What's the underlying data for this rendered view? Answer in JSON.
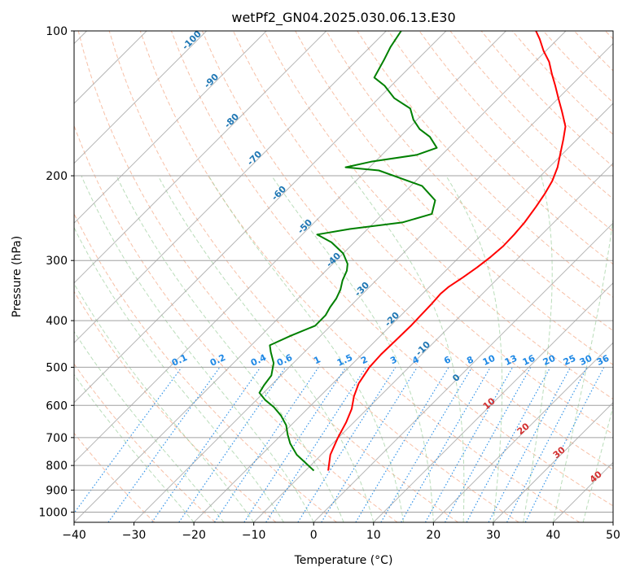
{
  "chart_data": {
    "type": "line",
    "title": "wetPf2_GN04.2025.030.06.13.E30",
    "xlabel": "Temperature (°C)",
    "ylabel": "Pressure (hPa)",
    "x_scale": "skewT",
    "y_scale": "log",
    "xlim": [
      -40,
      50
    ],
    "ylim": [
      1050,
      100
    ],
    "x_ticks": [
      "−40",
      "−30",
      "−20",
      "−10",
      "0",
      "10",
      "20",
      "30",
      "40",
      "50"
    ],
    "y_ticks": [
      "100",
      "200",
      "300",
      "400",
      "500",
      "600",
      "700",
      "800",
      "900",
      "1000"
    ],
    "grid": true,
    "series": [
      {
        "color": "#ff0000",
        "points": [
          [
            -6.2,
            820
          ],
          [
            -8.5,
            760
          ],
          [
            -10.1,
            700
          ],
          [
            -11.3,
            650
          ],
          [
            -12.6,
            610
          ],
          [
            -14.3,
            575
          ],
          [
            -15.7,
            540
          ],
          [
            -16.6,
            500
          ],
          [
            -16.8,
            470
          ],
          [
            -16.7,
            440
          ],
          [
            -16.6,
            410
          ],
          [
            -16.7,
            390
          ],
          [
            -16.8,
            370
          ],
          [
            -17.0,
            352
          ],
          [
            -16.8,
            340
          ],
          [
            -16.0,
            325
          ],
          [
            -15.3,
            310
          ],
          [
            -14.8,
            295
          ],
          [
            -14.5,
            280
          ],
          [
            -14.6,
            265
          ],
          [
            -14.9,
            250
          ],
          [
            -15.6,
            232
          ],
          [
            -16.3,
            218
          ],
          [
            -17.2,
            205
          ],
          [
            -18.6,
            192
          ],
          [
            -20.4,
            180
          ],
          [
            -22.3,
            168
          ],
          [
            -24.1,
            158
          ],
          [
            -27.2,
            147
          ],
          [
            -30.0,
            138
          ],
          [
            -32.6,
            130
          ],
          [
            -35.1,
            123
          ],
          [
            -37.6,
            116
          ],
          [
            -40.4,
            110
          ],
          [
            -43.0,
            104
          ],
          [
            -45.0,
            100
          ]
        ]
      },
      {
        "color": "#008000",
        "points": [
          [
            -8.6,
            820
          ],
          [
            -11.3,
            790
          ],
          [
            -14.1,
            760
          ],
          [
            -17.1,
            720
          ],
          [
            -19.0,
            690
          ],
          [
            -20.8,
            660
          ],
          [
            -23.3,
            630
          ],
          [
            -25.9,
            605
          ],
          [
            -28.5,
            585
          ],
          [
            -30.7,
            565
          ],
          [
            -31.2,
            545
          ],
          [
            -31.6,
            520
          ],
          [
            -33.3,
            490
          ],
          [
            -35.6,
            465
          ],
          [
            -36.9,
            450
          ],
          [
            -35.0,
            430
          ],
          [
            -32.6,
            410
          ],
          [
            -32.6,
            390
          ],
          [
            -33.2,
            375
          ],
          [
            -33.6,
            360
          ],
          [
            -34.4,
            345
          ],
          [
            -35.6,
            330
          ],
          [
            -36.5,
            315
          ],
          [
            -37.5,
            305
          ],
          [
            -40.0,
            290
          ],
          [
            -43.8,
            275
          ],
          [
            -47.5,
            265
          ],
          [
            -43.0,
            258
          ],
          [
            -35.3,
            250
          ],
          [
            -31.8,
            240
          ],
          [
            -33.5,
            225
          ],
          [
            -38.1,
            210
          ],
          [
            -47.9,
            195
          ],
          [
            -54.0,
            192
          ],
          [
            -50.7,
            187
          ],
          [
            -44.2,
            181
          ],
          [
            -42.0,
            175
          ],
          [
            -45.0,
            166
          ],
          [
            -48.0,
            160
          ],
          [
            -50.6,
            153
          ],
          [
            -53.0,
            145
          ],
          [
            -57.4,
            138
          ],
          [
            -61.1,
            130
          ],
          [
            -64.2,
            125
          ],
          [
            -65.5,
            115
          ],
          [
            -66.6,
            108
          ],
          [
            -67.5,
            100
          ]
        ]
      }
    ],
    "isotherm_labels": [
      "-100",
      "-90",
      "-80",
      "-70",
      "-60",
      "-50",
      "-40",
      "-30",
      "-20",
      "-10"
    ],
    "zero_label": "0",
    "mixing_ratio_labels": [
      "0.1",
      "0.2",
      "0.4",
      "0.6",
      "1",
      "1.5",
      "2",
      "3",
      "4",
      "6",
      "8",
      "10",
      "13",
      "16",
      "20",
      "25",
      "30",
      "36"
    ],
    "theta_labels": [
      "10",
      "20",
      "30",
      "40"
    ]
  }
}
